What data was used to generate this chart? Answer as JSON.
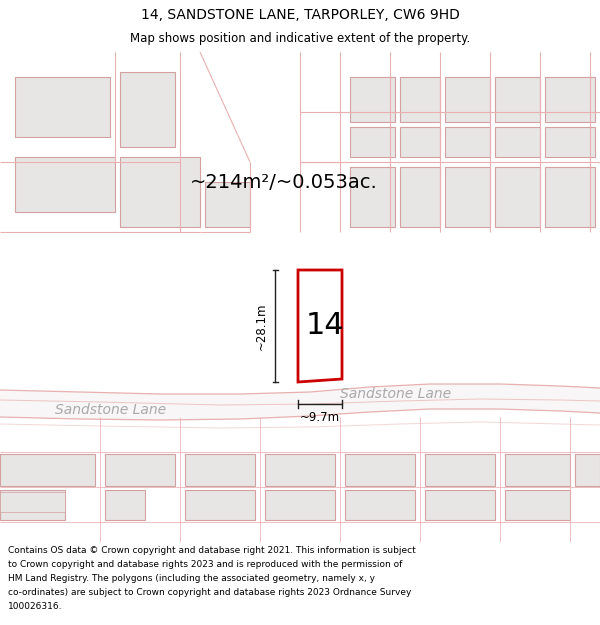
{
  "title_line1": "14, SANDSTONE LANE, TARPORLEY, CW6 9HD",
  "title_line2": "Map shows position and indicative extent of the property.",
  "area_text": "~214m²/~0.053ac.",
  "number_label": "14",
  "dim_vertical": "~28.1m",
  "dim_horizontal": "~9.7m",
  "road_label_left": "Sandstone Lane",
  "road_label_right": "Sandstone Lane",
  "footer_text": "Contains OS data © Crown copyright and database right 2021. This information is subject to Crown copyright and database rights 2023 and is reproduced with the permission of HM Land Registry. The polygons (including the associated geometry, namely x, y co-ordinates) are subject to Crown copyright and database rights 2023 Ordnance Survey 100026316.",
  "map_bg": "#f7f4f4",
  "building_fill": "#e8e5e5",
  "building_edge": "#d4a0a0",
  "plot_line_color": "#e8b0b0",
  "highlight_color": "#cc0000",
  "road_fill": "#f0eeee",
  "road_edge": "#cc9090",
  "road_label_color": "#aaaaaa",
  "title_bg": "#ffffff",
  "footer_bg": "#ffffff",
  "dim_line_color": "#222222",
  "area_fontsize": 14,
  "number_fontsize": 22,
  "road_label_fontsize": 10,
  "dim_fontsize": 8.5
}
